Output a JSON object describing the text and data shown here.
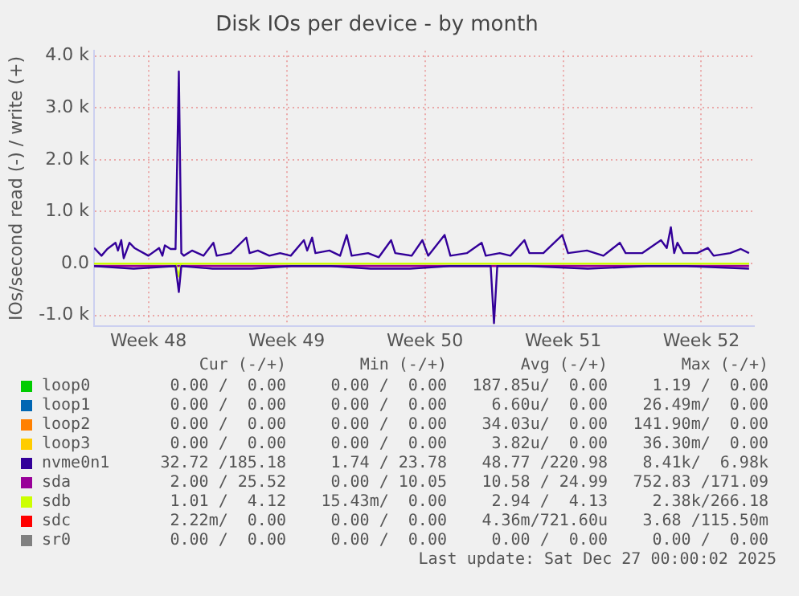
{
  "chart_data": {
    "type": "line",
    "title": "Disk IOs per device - by month",
    "ylabel": "IOs/second read (-) / write (+)",
    "xlim": [
      "2025-11-24T18:00",
      "2025-12-28T04:00"
    ],
    "xticks": [
      {
        "value": "2025-11-27T12:00",
        "label": "Week 48"
      },
      {
        "value": "2025-12-04T12:00",
        "label": "Week 49"
      },
      {
        "value": "2025-12-11T12:00",
        "label": "Week 50"
      },
      {
        "value": "2025-12-18T12:00",
        "label": "Week 51"
      },
      {
        "value": "2025-12-25T12:00",
        "label": "Week 52"
      }
    ],
    "ylim": [
      -1200,
      4100
    ],
    "yticks": [
      {
        "value": -1000,
        "label": "-1.0 k"
      },
      {
        "value": 0,
        "label": "0.0"
      },
      {
        "value": 1000,
        "label": "1.0 k"
      },
      {
        "value": 2000,
        "label": "2.0 k"
      },
      {
        "value": 3000,
        "label": "3.0 k"
      },
      {
        "value": 4000,
        "label": "4.0 k"
      }
    ],
    "grid": true,
    "legend": "bottom",
    "marker": "none",
    "line_style": "solid",
    "series": [
      {
        "name": "loop0",
        "color": "#00cc00",
        "values": [
          null
        ]
      },
      {
        "name": "loop1",
        "color": "#0066b3",
        "values": [
          null
        ]
      },
      {
        "name": "loop2",
        "color": "#ff8000",
        "values": [
          null
        ]
      },
      {
        "name": "loop3",
        "color": "#ffcc00",
        "values": [
          null
        ]
      },
      {
        "name": "nvme0n1",
        "color": "#330099",
        "x": [
          "2025-11-24T18:00",
          "2025-11-25T03:00",
          "2025-11-25T10:00",
          "2025-11-25T20:00",
          "2025-11-25T23:00",
          "2025-11-26T03:00",
          "2025-11-26T06:00",
          "2025-11-26T13:00",
          "2025-11-26T19:00",
          "2025-11-27T12:00",
          "2025-11-28T01:00",
          "2025-11-28T05:00",
          "2025-11-28T08:00",
          "2025-11-28T15:00",
          "2025-11-28T21:00",
          "2025-11-29T01:00",
          "2025-11-29T04:00",
          "2025-11-29T07:00",
          "2025-11-29T17:00",
          "2025-11-30T07:00",
          "2025-11-30T19:00",
          "2025-11-30T23:00",
          "2025-12-01T16:00",
          "2025-12-02T11:00",
          "2025-12-02T15:00",
          "2025-12-03T01:00",
          "2025-12-03T15:00",
          "2025-12-04T04:00",
          "2025-12-04T17:00",
          "2025-12-05T09:00",
          "2025-12-05T13:00",
          "2025-12-05T19:00",
          "2025-12-05T23:00",
          "2025-12-06T16:00",
          "2025-12-07T05:00",
          "2025-12-07T13:00",
          "2025-12-07T19:00",
          "2025-12-08T15:00",
          "2025-12-09T04:00",
          "2025-12-09T19:00",
          "2025-12-10T00:00",
          "2025-12-10T20:00",
          "2025-12-11T09:00",
          "2025-12-11T16:00",
          "2025-12-12T12:00",
          "2025-12-12T19:00",
          "2025-12-13T15:00",
          "2025-12-14T09:00",
          "2025-12-14T14:00",
          "2025-12-15T07:00",
          "2025-12-15T20:00",
          "2025-12-16T13:00",
          "2025-12-16T19:00",
          "2025-12-17T12:00",
          "2025-12-18T11:00",
          "2025-12-18T18:00",
          "2025-12-19T17:00",
          "2025-12-20T13:00",
          "2025-12-21T09:00",
          "2025-12-21T16:00",
          "2025-12-22T12:00",
          "2025-12-23T11:00",
          "2025-12-23T18:00",
          "2025-12-23T23:00",
          "2025-12-24T03:00",
          "2025-12-24T07:00",
          "2025-12-24T14:00",
          "2025-12-25T07:00",
          "2025-12-25T20:00",
          "2025-12-26T03:00",
          "2025-12-26T23:00",
          "2025-12-27T12:00",
          "2025-12-27T22:00"
        ],
        "values": [
          300,
          150,
          280,
          400,
          250,
          450,
          100,
          400,
          300,
          150,
          300,
          150,
          350,
          280,
          280,
          3700,
          200,
          150,
          250,
          150,
          400,
          150,
          200,
          500,
          200,
          250,
          150,
          200,
          150,
          450,
          250,
          500,
          200,
          250,
          150,
          550,
          150,
          200,
          120,
          450,
          200,
          150,
          450,
          150,
          550,
          150,
          200,
          400,
          150,
          200,
          150,
          450,
          200,
          200,
          550,
          200,
          250,
          150,
          400,
          200,
          200,
          450,
          300,
          700,
          200,
          400,
          200,
          200,
          300,
          150,
          200,
          280,
          200
        ]
      },
      {
        "name": "sda",
        "color": "#990099",
        "x": [
          "2025-11-24T18:00",
          "2025-12-27T22:00"
        ],
        "values": [
          0,
          0
        ]
      },
      {
        "name": "sdb",
        "color": "#ccff00",
        "x": [
          "2025-11-24T18:00",
          "2025-12-27T22:00"
        ],
        "values": [
          0,
          0
        ]
      },
      {
        "name": "sdc",
        "color": "#ff0000",
        "values": [
          null
        ]
      },
      {
        "name": "sr0",
        "color": "#808080",
        "values": [
          null
        ]
      },
      {
        "color": "#990099",
        "x": [
          "2025-11-24T18:00",
          "2025-12-27T22:00"
        ],
        "values": [
          -50,
          -50
        ]
      },
      {
        "color": "#ccff00",
        "x": [
          "2025-11-24T18:00",
          "2025-11-28T21:00",
          "2025-11-29T01:00",
          "2025-11-29T04:00",
          "2025-12-27T22:00"
        ],
        "values": [
          0,
          0,
          -250,
          0,
          0
        ]
      },
      {
        "color": "#330099",
        "x": [
          "2025-11-24T18:00",
          "2025-11-26T18:00",
          "2025-11-28T21:00",
          "2025-11-29T01:00",
          "2025-11-29T04:00",
          "2025-11-30T18:00",
          "2025-12-02T18:00",
          "2025-12-04T18:00",
          "2025-12-06T18:00",
          "2025-12-08T18:00",
          "2025-12-10T18:00",
          "2025-12-12T18:00",
          "2025-12-14T20:00",
          "2025-12-15T00:00",
          "2025-12-15T04:00",
          "2025-12-16T18:00",
          "2025-12-19T18:00",
          "2025-12-22T18:00",
          "2025-12-24T18:00",
          "2025-12-27T22:00"
        ],
        "values": [
          -50,
          -100,
          -50,
          -550,
          -50,
          -100,
          -100,
          -50,
          -50,
          -100,
          -100,
          -50,
          -50,
          -1150,
          -50,
          -50,
          -100,
          -50,
          -50,
          -100
        ]
      }
    ],
    "annotations": [
      "Cur (-/+)",
      "Min (-/+)",
      "Avg (-/+)",
      "Max (-/+)",
      "0.00 /  0.00",
      "0.00 /  0.00",
      "187.85u/  0.00",
      "1.19 /  0.00",
      "0.00 /  0.00",
      "0.00 /  0.00",
      "6.60u/  0.00",
      "26.49m/  0.00",
      "0.00 /  0.00",
      "0.00 /  0.00",
      "34.03u/  0.00",
      "141.90m/  0.00",
      "0.00 /  0.00",
      "0.00 /  0.00",
      "3.82u/  0.00",
      "36.30m/  0.00",
      "32.72 /185.18",
      "1.74 / 23.78",
      "48.77 /220.98",
      "8.41k/  6.98k",
      "2.00 / 25.52",
      "0.00 / 10.05",
      "10.58 / 24.99",
      "752.83 /171.09",
      "1.01 /  4.12",
      "15.43m/  0.00",
      "2.94 /  4.13",
      "2.38k/266.18",
      "2.22m/  0.00",
      "0.00 /  0.00",
      "4.36m/721.60u",
      "3.68 /115.50m",
      "0.00 /  0.00",
      "0.00 /  0.00",
      "0.00 /  0.00",
      "0.00 /  0.00",
      "Last update: Sat Dec 27 00:00:02 2025"
    ]
  }
}
